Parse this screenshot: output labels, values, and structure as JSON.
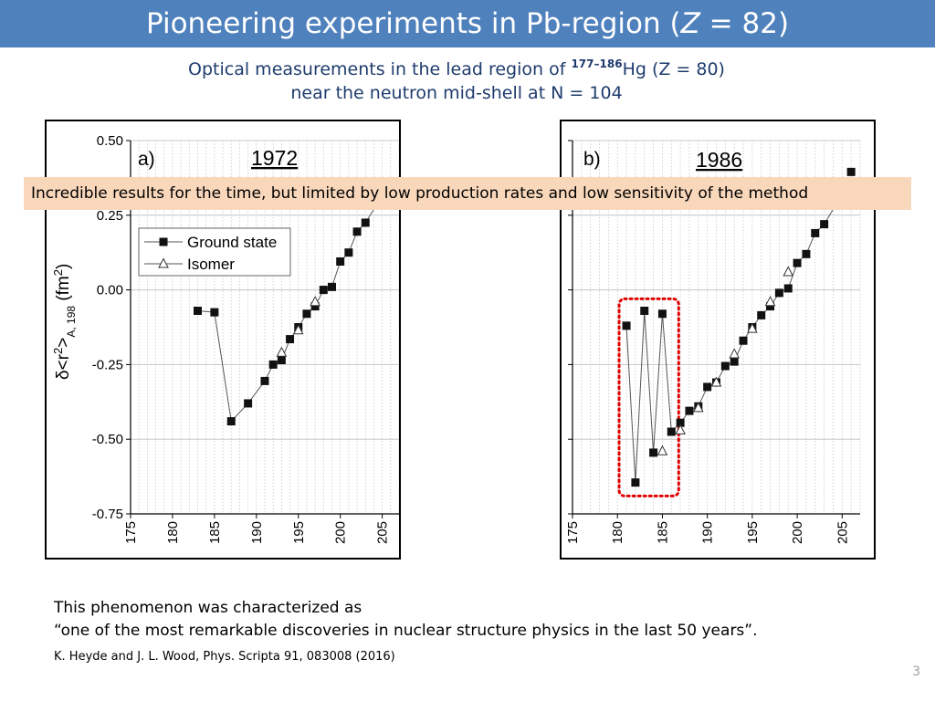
{
  "header": {
    "title_prefix": "Pioneering experiments in Pb-region (",
    "title_var": "Z",
    "title_suffix": " = 82)"
  },
  "subtitle": {
    "line1_prefix": "Optical measurements in the lead region of ",
    "mass_range": "177–186",
    "line1_suffix": "Hg (Z = 80)",
    "line2": "near the neutron mid-shell at N = 104"
  },
  "banner": {
    "text": "Incredible results for the time, but limited by low production rates and low sensitivity of the method"
  },
  "body_text": {
    "line1": "This phenomenon was characterized as",
    "line2": "“one of the most remarkable discoveries in nuclear structure physics in the last 50 years”."
  },
  "reference": "K. Heyde and J. L. Wood, Phys. Scripta 91, 083008 (2016)",
  "page_number": "3",
  "colors": {
    "title_bar": "#4f81bd",
    "banner": "#f9d7bb",
    "highlight_box": "#e00000",
    "subtitle": "#1f3c6e"
  },
  "chart_data": [
    {
      "type": "scatter",
      "panel_label": "a)",
      "year": "1972",
      "ylabel": "δ<r²>A, 198 (fm²)",
      "ylabel_main": "δ<r",
      "ylabel_sup": "2",
      "ylabel_close": ">",
      "ylabel_sub": "A, 198",
      "ylabel_unit": " (fm",
      "ylabel_unit_sup": "2",
      "ylabel_unit_close": ")",
      "xlim": [
        175,
        207
      ],
      "ylim": [
        -0.75,
        0.5
      ],
      "xticks": [
        "175",
        "180",
        "185",
        "190",
        "195",
        "200",
        "205"
      ],
      "yticks": [
        "0.50",
        "0.25",
        "0.00",
        "-0.25",
        "-0.50",
        "-0.75"
      ],
      "ytick_values": [
        0.5,
        0.25,
        0.0,
        -0.25,
        -0.5,
        -0.75
      ],
      "xtick_values": [
        175,
        180,
        185,
        190,
        195,
        200,
        205
      ],
      "grid": true,
      "legend_position": "upper-left",
      "legend": [
        "Ground state",
        "Isomer"
      ],
      "series": [
        {
          "name": "Ground state",
          "marker": "square",
          "points": [
            [
              183,
              -0.07
            ],
            [
              185,
              -0.075
            ],
            [
              187,
              -0.44
            ],
            [
              189,
              -0.38
            ],
            [
              191,
              -0.305
            ],
            [
              192,
              -0.25
            ],
            [
              193,
              -0.235
            ],
            [
              194,
              -0.165
            ],
            [
              195,
              -0.125
            ],
            [
              196,
              -0.08
            ],
            [
              197,
              -0.055
            ],
            [
              198,
              0.0
            ],
            [
              199,
              0.01
            ],
            [
              200,
              0.095
            ],
            [
              201,
              0.125
            ],
            [
              202,
              0.195
            ],
            [
              203,
              0.225
            ]
          ],
          "lines": [
            [
              [
                183,
                -0.07
              ],
              [
                185,
                -0.075
              ]
            ],
            [
              [
                185,
                -0.075
              ],
              [
                187,
                -0.44
              ],
              [
                189,
                -0.38
              ],
              [
                191,
                -0.305
              ],
              [
                192,
                -0.25
              ],
              [
                193,
                -0.235
              ],
              [
                194,
                -0.165
              ],
              [
                195,
                -0.125
              ],
              [
                196,
                -0.08
              ],
              [
                197,
                -0.055
              ],
              [
                198,
                0.0
              ],
              [
                199,
                0.01
              ],
              [
                200,
                0.095
              ],
              [
                201,
                0.125
              ],
              [
                202,
                0.195
              ],
              [
                203,
                0.225
              ],
              [
                204,
                0.27
              ]
            ]
          ]
        },
        {
          "name": "Isomer",
          "marker": "triangle",
          "points": [
            [
              193,
              -0.21
            ],
            [
              195,
              -0.135
            ],
            [
              197,
              -0.04
            ]
          ],
          "lines": []
        }
      ]
    },
    {
      "type": "scatter",
      "panel_label": "b)",
      "year": "1986",
      "xlim": [
        175,
        207
      ],
      "ylim": [
        -0.75,
        0.5
      ],
      "xticks": [
        "175",
        "180",
        "185",
        "190",
        "195",
        "200",
        "205"
      ],
      "xtick_values": [
        175,
        180,
        185,
        190,
        195,
        200,
        205
      ],
      "ytick_values": [
        0.5,
        0.25,
        0.0,
        -0.25,
        -0.5,
        -0.75
      ],
      "grid": true,
      "series": [
        {
          "name": "Ground state",
          "marker": "square",
          "points": [
            [
              181,
              -0.12
            ],
            [
              182,
              -0.645
            ],
            [
              183,
              -0.07
            ],
            [
              184,
              -0.545
            ],
            [
              185,
              -0.08
            ],
            [
              186,
              -0.475
            ],
            [
              187,
              -0.445
            ],
            [
              188,
              -0.405
            ],
            [
              189,
              -0.39
            ],
            [
              190,
              -0.325
            ],
            [
              191,
              -0.31
            ],
            [
              192,
              -0.255
            ],
            [
              193,
              -0.24
            ],
            [
              194,
              -0.17
            ],
            [
              195,
              -0.125
            ],
            [
              196,
              -0.085
            ],
            [
              197,
              -0.055
            ],
            [
              198,
              -0.01
            ],
            [
              199,
              0.005
            ],
            [
              200,
              0.09
            ],
            [
              201,
              0.12
            ],
            [
              202,
              0.19
            ],
            [
              203,
              0.22
            ],
            [
              206,
              0.395
            ]
          ],
          "lines": [
            [
              [
                181,
                -0.12
              ],
              [
                182,
                -0.645
              ],
              [
                183,
                -0.07
              ],
              [
                184,
                -0.545
              ],
              [
                185,
                -0.08
              ],
              [
                186,
                -0.475
              ],
              [
                187,
                -0.445
              ],
              [
                188,
                -0.405
              ],
              [
                189,
                -0.39
              ],
              [
                190,
                -0.325
              ],
              [
                191,
                -0.31
              ],
              [
                192,
                -0.255
              ],
              [
                193,
                -0.24
              ],
              [
                194,
                -0.17
              ],
              [
                195,
                -0.125
              ],
              [
                196,
                -0.085
              ],
              [
                197,
                -0.055
              ],
              [
                198,
                -0.01
              ],
              [
                199,
                0.005
              ],
              [
                200,
                0.09
              ],
              [
                201,
                0.12
              ],
              [
                202,
                0.19
              ],
              [
                203,
                0.22
              ],
              [
                204,
                0.27
              ]
            ]
          ]
        },
        {
          "name": "Isomer",
          "marker": "triangle",
          "points": [
            [
              185,
              -0.54
            ],
            [
              187,
              -0.47
            ],
            [
              189,
              -0.395
            ],
            [
              191,
              -0.31
            ],
            [
              193,
              -0.215
            ],
            [
              195,
              -0.13
            ],
            [
              197,
              -0.04
            ],
            [
              199,
              0.06
            ]
          ],
          "lines": []
        }
      ],
      "highlight": {
        "x_range": [
          181,
          186
        ],
        "y_range": [
          -0.69,
          -0.03
        ]
      }
    }
  ]
}
